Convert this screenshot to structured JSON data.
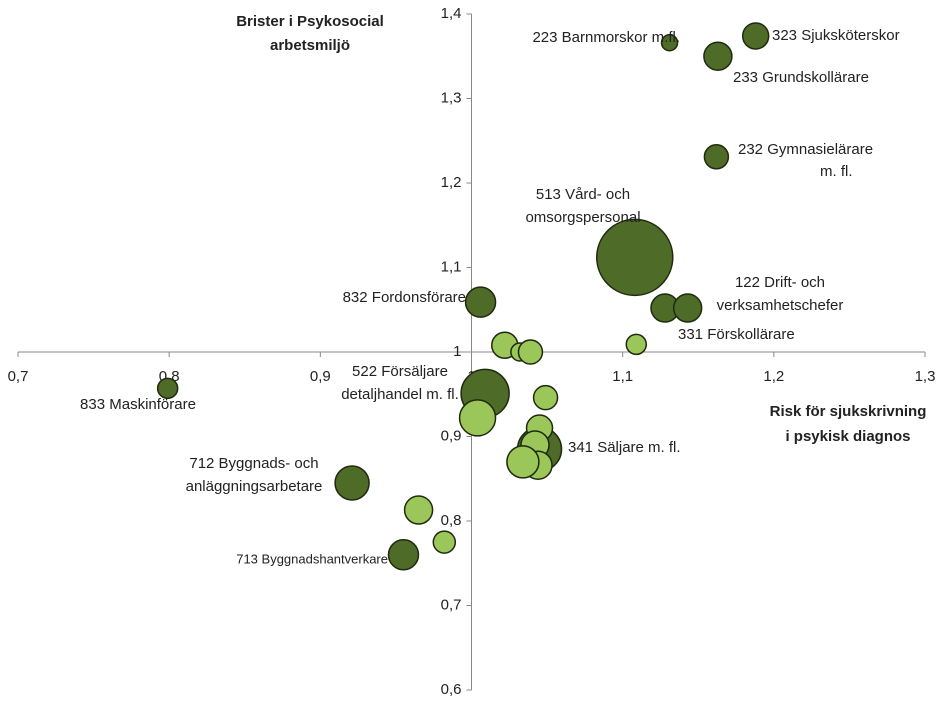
{
  "chart_data": {
    "type": "bubble",
    "ylabel": [
      "Brister i Psykosocial",
      "arbetsmiljö"
    ],
    "xlabel": [
      "Risk för sjukskrivning",
      "i psykisk diagnos"
    ],
    "xlim": [
      0.7,
      1.3
    ],
    "ylim": [
      0.6,
      1.4
    ],
    "x_axis_at": 1,
    "y_axis_at": 1,
    "xticks": [
      {
        "value": 0.7,
        "label": "0,7"
      },
      {
        "value": 0.8,
        "label": "0,8"
      },
      {
        "value": 0.9,
        "label": "0,9"
      },
      1,
      {
        "value": 1.1,
        "label": "1,1"
      },
      {
        "value": 1.2,
        "label": "1,2"
      },
      {
        "value": 1.3,
        "label": "1,3"
      }
    ],
    "yticks": [
      {
        "value": 0.6,
        "label": "0,6"
      },
      {
        "value": 0.7,
        "label": "0,7"
      },
      {
        "value": 0.8,
        "label": "0,8"
      },
      {
        "value": 0.9,
        "label": "0,9"
      },
      1,
      {
        "value": 1.1,
        "label": "1,1"
      },
      {
        "value": 1.2,
        "label": "1,2"
      },
      {
        "value": 1.3,
        "label": "1,3"
      },
      {
        "value": 1.4,
        "label": "1,4"
      }
    ],
    "series": [
      {
        "color": "#4f6b28",
        "x": [
          1.188,
          1.131,
          1.163,
          1.162,
          1.108,
          1.128,
          1.143,
          1.006,
          1.009,
          1.045,
          0.799,
          0.921,
          0.955
        ],
        "values": [
          1.374,
          1.366,
          1.35,
          1.231,
          1.112,
          1.052,
          1.052,
          1.059,
          0.951,
          0.885,
          0.957,
          0.845,
          0.76
        ],
        "sizes": [
          13,
          8,
          14,
          12,
          38,
          14,
          14,
          15,
          24,
          22,
          10,
          17,
          15
        ]
      },
      {
        "color": "#9bc65a",
        "x": [
          1.109,
          1.022,
          1.032,
          1.039,
          1.004,
          1.049,
          1.045,
          1.042,
          1.044,
          1.034,
          0.965,
          0.982
        ],
        "values": [
          1.009,
          1.008,
          1.0,
          1.0,
          0.922,
          0.946,
          0.91,
          0.89,
          0.866,
          0.87,
          0.813,
          0.775
        ],
        "sizes": [
          10,
          13,
          9,
          12,
          18,
          12,
          13,
          14,
          14,
          16,
          14,
          11
        ]
      }
    ],
    "annotations": [
      {
        "text": [
          "323 Sjuksköterskor"
        ]
      },
      {
        "text": [
          "223 Barnmorskor m.fl."
        ]
      },
      {
        "text": [
          "233 Grundskollärare"
        ]
      },
      {
        "text": [
          "232 Gymnasielärare",
          "m. fl."
        ]
      },
      {
        "text": [
          "513 Vård- och",
          "omsorgspersonal"
        ]
      },
      {
        "text": [
          "122 Drift- och",
          "verksamhetschefer"
        ]
      },
      {
        "text": [
          "331 Förskollärare"
        ]
      },
      {
        "text": [
          "832 Fordonsförare"
        ]
      },
      {
        "text": [
          "522 Försäljare",
          "detaljhandel m. fl."
        ]
      },
      {
        "text": [
          "833 Maskinförare"
        ]
      },
      {
        "text": [
          "341 Säljare m. fl."
        ]
      },
      {
        "text": [
          "712 Byggnads- och",
          "anläggningsarbetare"
        ]
      },
      {
        "text": [
          "713 Byggnadshantverkare"
        ]
      }
    ]
  }
}
